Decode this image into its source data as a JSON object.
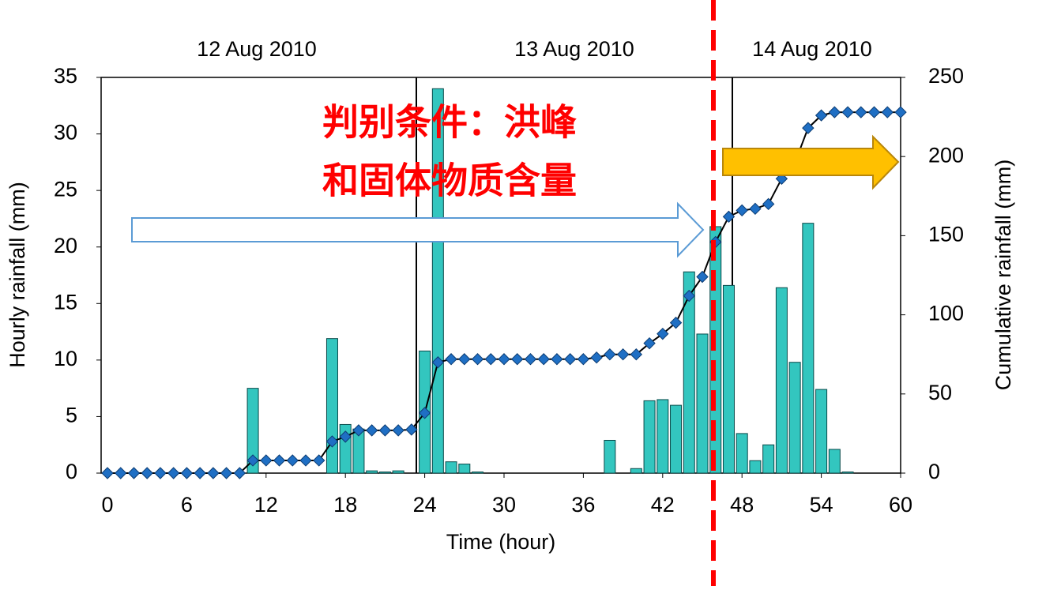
{
  "chart_data": {
    "type": "bar-line",
    "date_labels": [
      "12 Aug 2010",
      "13 Aug 2010",
      "14 Aug 2010"
    ],
    "annotation": [
      "判别条件：洪峰",
      "和固体物质含量"
    ],
    "xlabel": "Time (hour)",
    "ylabel": "Hourly rainfall (mm)",
    "y2label": "Cumulative rainfall (mm)",
    "xlim": [
      0,
      60
    ],
    "xticks": [
      0,
      6,
      12,
      18,
      24,
      30,
      36,
      42,
      48,
      54,
      60
    ],
    "ylim": [
      0,
      35
    ],
    "yticks": [
      0,
      5,
      10,
      15,
      20,
      25,
      30,
      35
    ],
    "y2lim": [
      0,
      250
    ],
    "y2ticks": [
      0,
      50,
      100,
      150,
      200,
      250
    ],
    "series": [
      {
        "type": "bar",
        "color": "#33c6bf",
        "x": [
          11,
          17,
          18,
          19,
          20,
          21,
          22,
          24,
          25,
          26,
          27,
          28,
          38,
          40,
          41,
          42,
          43,
          44,
          45,
          46,
          47,
          48,
          49,
          50,
          51,
          52,
          53,
          54,
          55,
          56
        ],
        "values": [
          7.5,
          11.9,
          4.3,
          3.9,
          0.2,
          0.1,
          0.2,
          10.8,
          34,
          1.0,
          0.8,
          0.1,
          2.9,
          0.4,
          6.4,
          6.5,
          6.0,
          17.8,
          12.3,
          21.8,
          16.6,
          3.5,
          1.1,
          2.5,
          16.4,
          9.8,
          22.1,
          7.4,
          2.1,
          0.1
        ]
      },
      {
        "type": "line",
        "axis": "y2",
        "color": "#1f6fc4",
        "x": [
          0,
          1,
          2,
          3,
          4,
          5,
          6,
          7,
          8,
          9,
          10,
          11,
          12,
          13,
          14,
          15,
          16,
          17,
          18,
          19,
          20,
          21,
          22,
          23,
          24,
          25,
          26,
          27,
          28,
          29,
          30,
          31,
          32,
          33,
          34,
          35,
          36,
          37,
          38,
          39,
          40,
          41,
          42,
          43,
          44,
          45,
          46,
          47,
          48,
          49,
          50,
          51,
          52,
          53,
          54,
          55,
          56,
          57,
          58,
          59,
          60
        ],
        "values": [
          0,
          0,
          0,
          0,
          0,
          0,
          0,
          0,
          0,
          0,
          0,
          8,
          8,
          8,
          8,
          8,
          8,
          20,
          23,
          27,
          27,
          27,
          27,
          27.5,
          38,
          70,
          72,
          72,
          72,
          72,
          72,
          72,
          72,
          72,
          72,
          72,
          72,
          73,
          75,
          75,
          75,
          82,
          88,
          95,
          112,
          124,
          146,
          162,
          166,
          167,
          170,
          186,
          196,
          218,
          226,
          228,
          228,
          228,
          228,
          228,
          228
        ]
      }
    ]
  }
}
